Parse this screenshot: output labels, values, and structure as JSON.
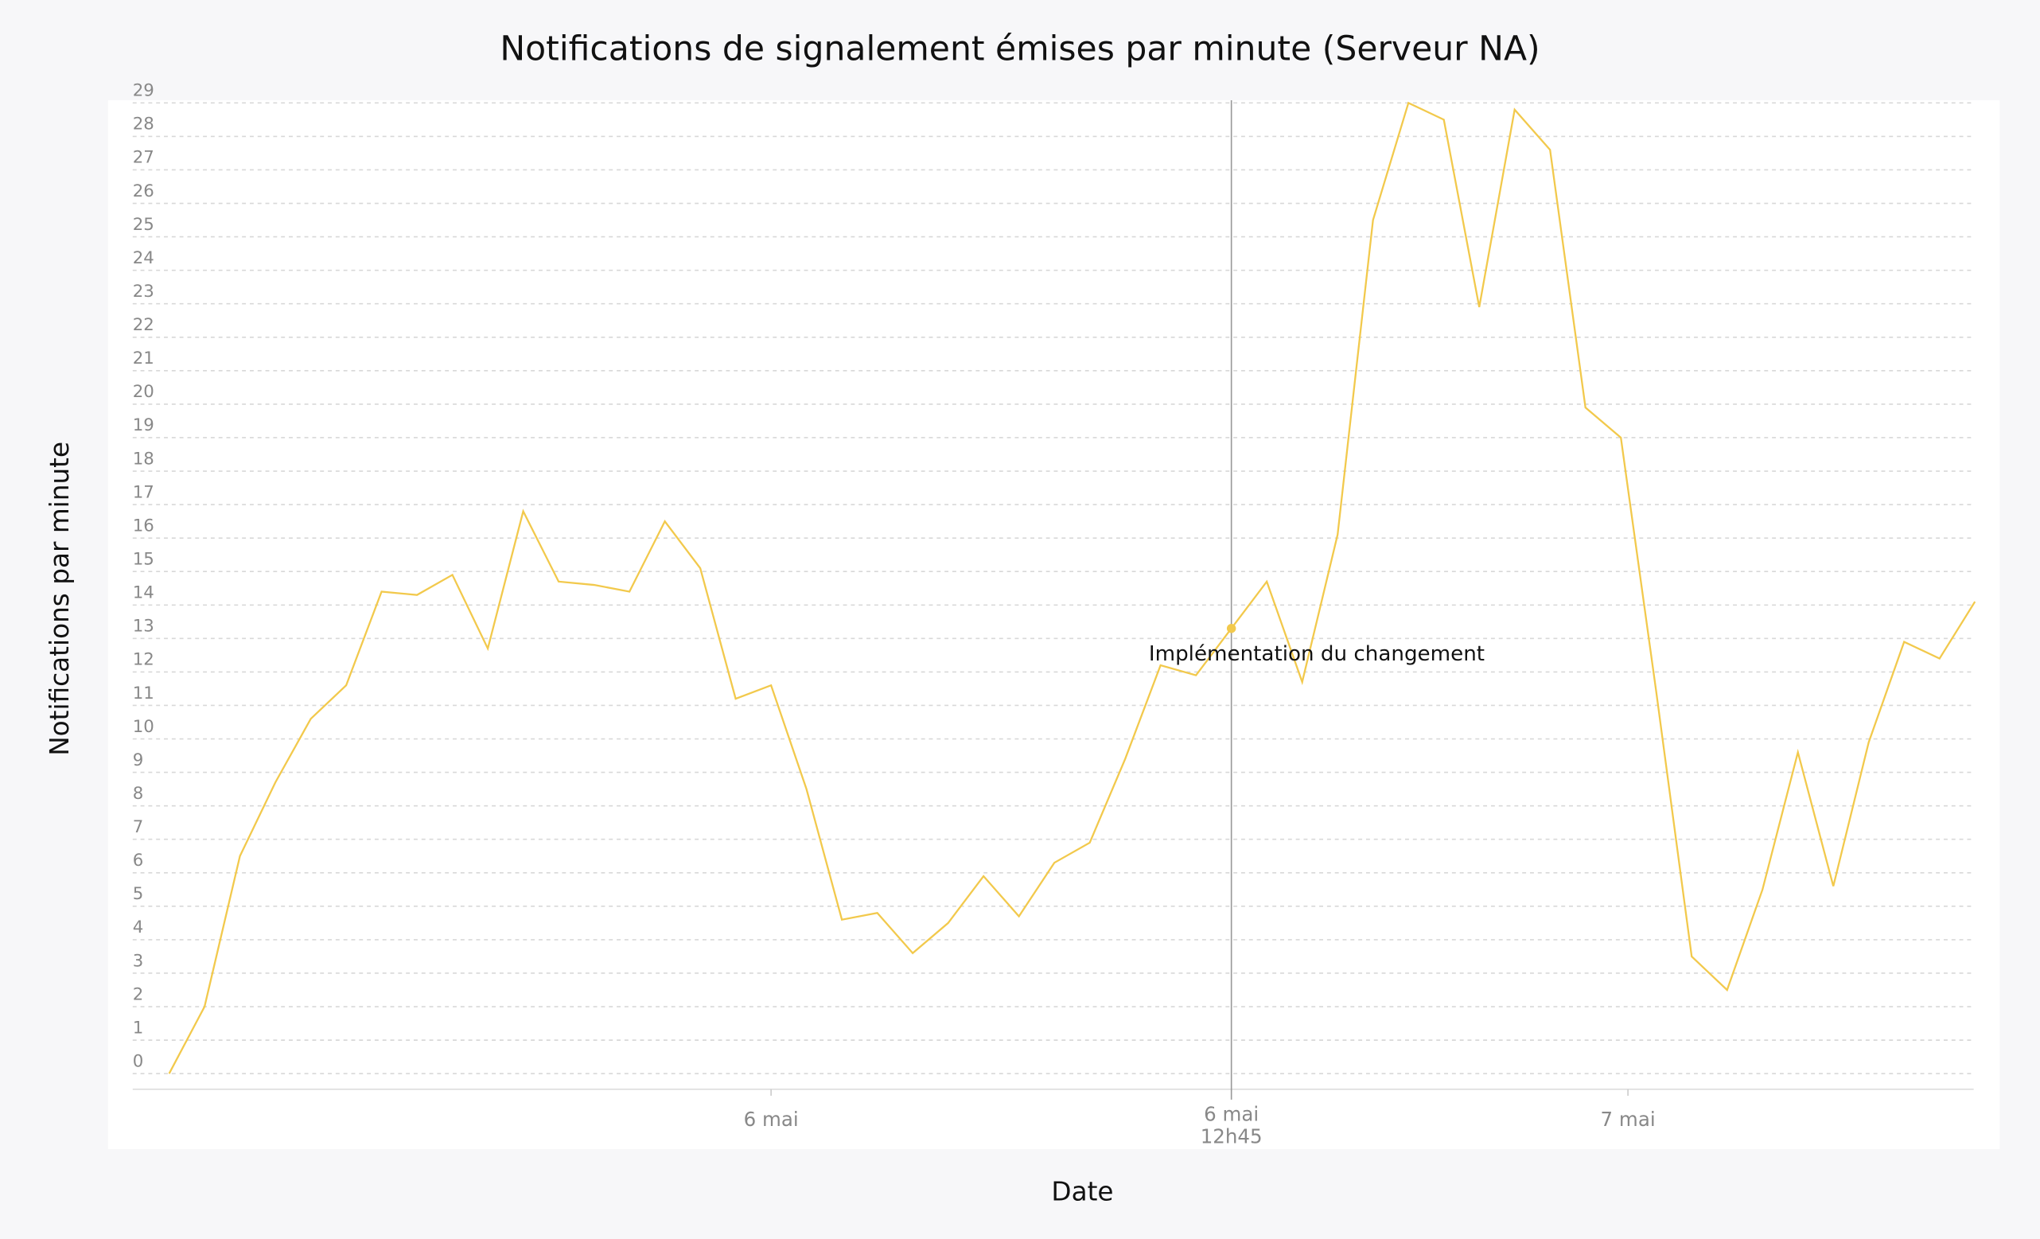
{
  "chart_data": {
    "type": "line",
    "title": "Notifications de signalement émises par minute (Serveur NA)",
    "x_label": "Date",
    "y_label": "Notifications par minute",
    "x": [
      0,
      1,
      2,
      3,
      4,
      5,
      6,
      7,
      8,
      9,
      10,
      11,
      12,
      13,
      14,
      15,
      16,
      17,
      18,
      19,
      20,
      21,
      22,
      23,
      24,
      25,
      26,
      27,
      28,
      29,
      30,
      31,
      32,
      33,
      34,
      35,
      36,
      37,
      38,
      39,
      40,
      41,
      42,
      43,
      44,
      45,
      46,
      47,
      48,
      49,
      50,
      51
    ],
    "xlim": [
      0,
      51
    ],
    "xticks": [
      {
        "value": 17,
        "label": "6 mai"
      },
      {
        "value": 41.2,
        "label": "7 mai"
      }
    ],
    "series": [
      {
        "name": "Notifications",
        "color": "#f2c94c",
        "values": [
          0,
          2,
          6.5,
          8.7,
          10.6,
          11.6,
          14.4,
          14.3,
          14.9,
          12.7,
          16.8,
          14.7,
          14.6,
          14.4,
          16.5,
          15.1,
          11.2,
          11.6,
          8.5,
          4.6,
          4.8,
          3.6,
          4.5,
          5.9,
          4.7,
          6.3,
          6.9,
          9.4,
          12.2,
          11.9,
          13.3,
          14.7,
          11.7,
          16.1,
          25.5,
          29,
          28.5,
          22.9,
          28.8,
          27.6,
          19.9,
          19,
          11.4,
          3.5,
          2.5,
          5.5,
          9.6,
          5.6,
          9.9,
          12.9,
          12.4,
          14.1
        ]
      }
    ],
    "ylim": [
      0,
      29
    ],
    "yticks": [
      0,
      1,
      2,
      3,
      4,
      5,
      6,
      7,
      8,
      9,
      10,
      11,
      12,
      13,
      14,
      15,
      16,
      17,
      18,
      19,
      20,
      21,
      22,
      23,
      24,
      25,
      26,
      27,
      28,
      29
    ],
    "grid": true,
    "annotation": {
      "x": 30,
      "date": "6 mai",
      "time": "12h45",
      "text": "Implémentation du changement"
    }
  }
}
